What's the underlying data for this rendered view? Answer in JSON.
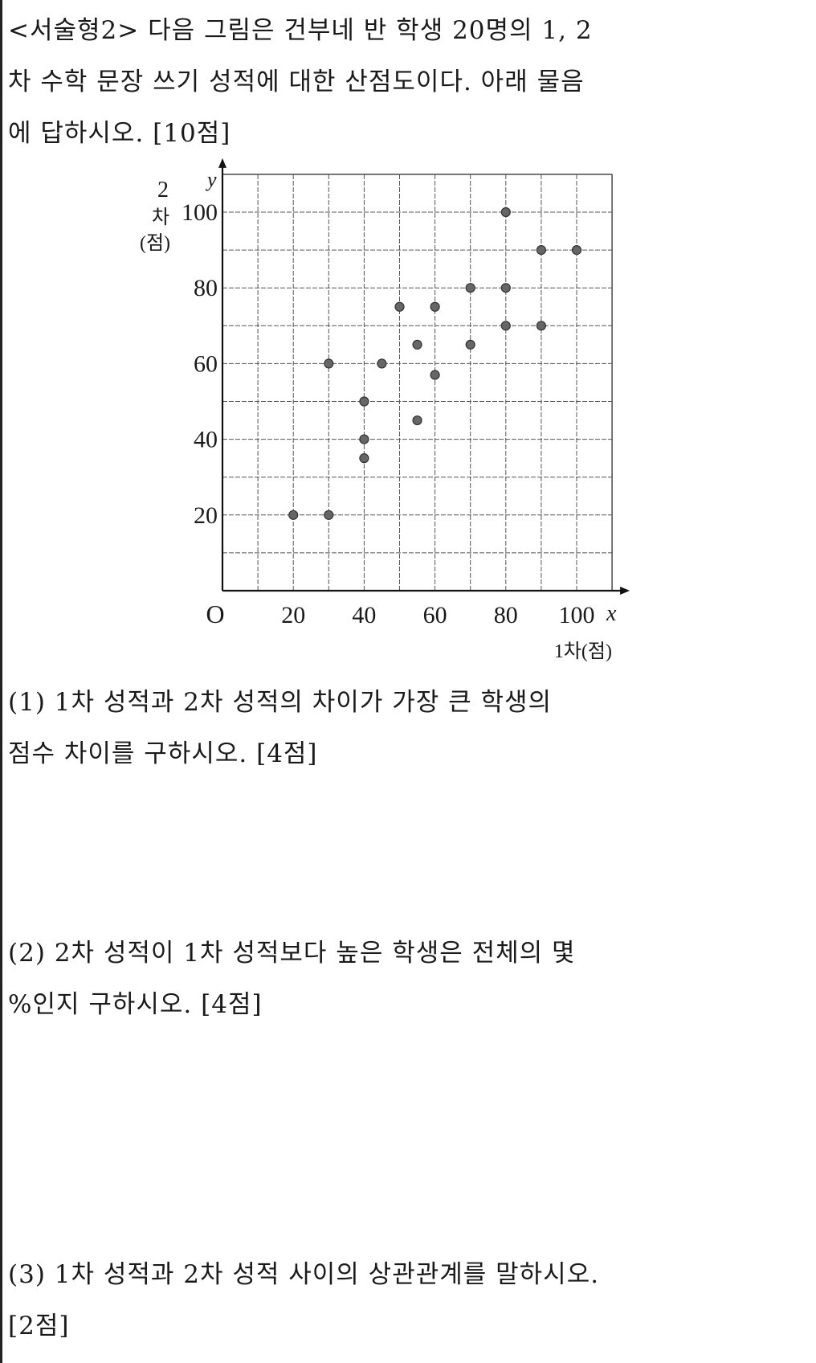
{
  "question": {
    "header_lines": [
      "<서술형2> 다음 그림은 건부네 반 학생 20명의 1, 2",
      "차 수학 문장 쓰기 성적에 대한 산점도이다. 아래 물음",
      "에 답하시오. [10점]"
    ],
    "sub1_lines": [
      "(1) 1차 성적과 2차 성적의 차이가 가장 큰 학생의",
      "점수 차이를 구하시오. [4점]"
    ],
    "sub2_lines": [
      "(2) 2차 성적이 1차 성적보다 높은 학생은 전체의 몇",
      "%인지 구하시오. [4점]"
    ],
    "sub3_lines": [
      "(3) 1차 성적과 2차 성적 사이의 상관관계를 말하시오.",
      "[2점]"
    ]
  },
  "chart_data": {
    "type": "scatter",
    "title": "",
    "xlabel": "1차(점)",
    "ylabel_lines": [
      "2",
      "차",
      "(점)"
    ],
    "x_axis_var": "x",
    "y_axis_var": "y",
    "origin_label": "O",
    "xlim": [
      0,
      110
    ],
    "ylim": [
      0,
      110
    ],
    "x_ticks": [
      20,
      40,
      60,
      80,
      100
    ],
    "y_ticks": [
      20,
      40,
      60,
      80,
      100
    ],
    "grid": true,
    "grid_step": 10,
    "points": [
      {
        "x": 20,
        "y": 20
      },
      {
        "x": 30,
        "y": 20
      },
      {
        "x": 30,
        "y": 60
      },
      {
        "x": 40,
        "y": 50
      },
      {
        "x": 40,
        "y": 40
      },
      {
        "x": 40,
        "y": 35
      },
      {
        "x": 45,
        "y": 60
      },
      {
        "x": 50,
        "y": 75
      },
      {
        "x": 55,
        "y": 65
      },
      {
        "x": 55,
        "y": 45
      },
      {
        "x": 60,
        "y": 75
      },
      {
        "x": 60,
        "y": 57
      },
      {
        "x": 70,
        "y": 80
      },
      {
        "x": 70,
        "y": 65
      },
      {
        "x": 80,
        "y": 100
      },
      {
        "x": 80,
        "y": 80
      },
      {
        "x": 80,
        "y": 70
      },
      {
        "x": 90,
        "y": 90
      },
      {
        "x": 90,
        "y": 70
      },
      {
        "x": 100,
        "y": 90
      }
    ]
  }
}
